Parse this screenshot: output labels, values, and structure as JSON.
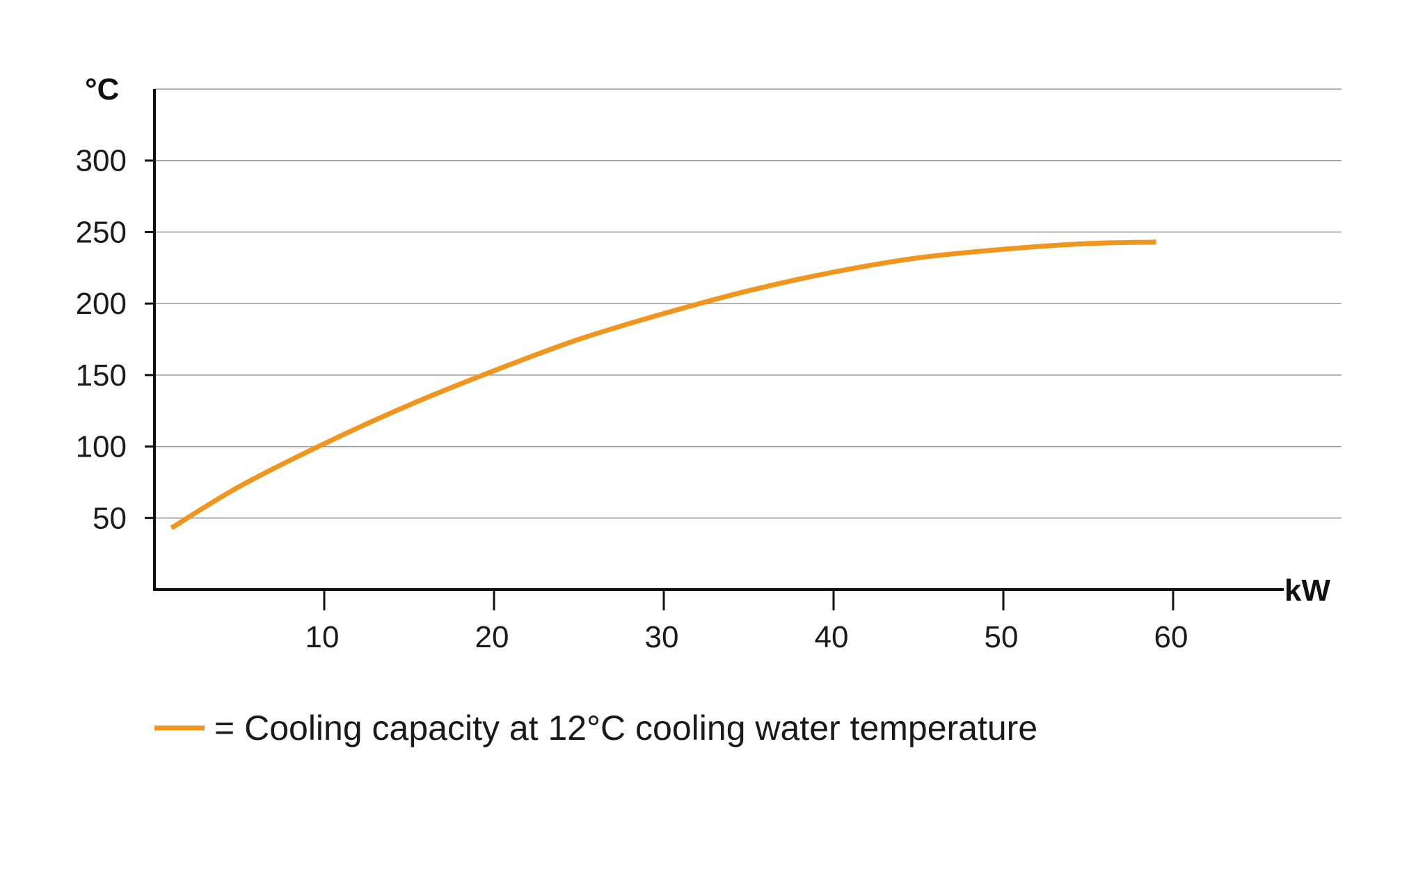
{
  "chart_data": {
    "type": "line",
    "x_unit": "kW",
    "y_unit": "°C",
    "xlim": [
      0,
      70
    ],
    "ylim": [
      0,
      350
    ],
    "x_ticks": [
      10,
      20,
      30,
      40,
      50,
      60
    ],
    "x_tick_labels": [
      "10",
      "20",
      "30",
      "40",
      "50",
      "60"
    ],
    "y_ticks": [
      50,
      100,
      150,
      200,
      250,
      300
    ],
    "y_tick_labels": [
      "50",
      "100",
      "150",
      "200",
      "250",
      "300"
    ],
    "grid": true,
    "series": [
      {
        "name": "= Cooling capacity at 12°C cooling water temperature",
        "color": "#F0961E",
        "x": [
          1,
          5,
          10,
          15,
          20,
          25,
          30,
          35,
          40,
          45,
          50,
          55,
          59
        ],
        "y": [
          43,
          72,
          102,
          129,
          153,
          175,
          193,
          209,
          222,
          232,
          238,
          242,
          243
        ]
      }
    ],
    "legend_position": "bottom-left"
  }
}
